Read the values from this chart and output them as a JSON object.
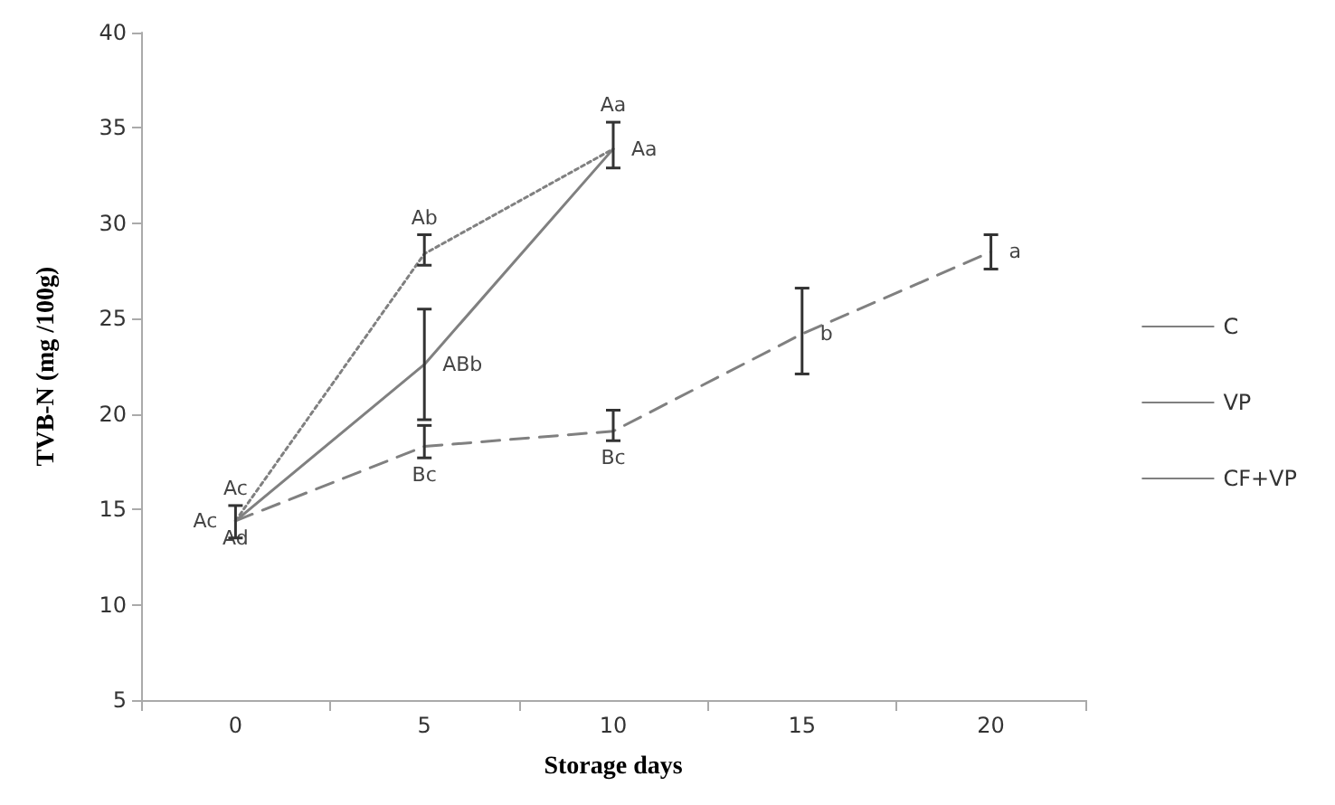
{
  "chart_data": {
    "type": "line",
    "xlabel": "Storage days",
    "ylabel": "TVB-N (mg /100g)",
    "categories": [
      "0",
      "5",
      "10",
      "15",
      "20"
    ],
    "series": [
      {
        "name": "C",
        "color": "#808080",
        "line_style": "solid",
        "values": [
          14.4,
          22.6,
          33.9,
          null,
          null
        ],
        "errors": [
          [
            13.5,
            15.2
          ],
          [
            19.7,
            25.5
          ],
          [
            32.9,
            35.3
          ],
          null,
          null
        ],
        "value_labels": [
          "Ac",
          "ABb",
          "Aa",
          null,
          null
        ]
      },
      {
        "name": "VP",
        "color": "#808080",
        "line_style": "dotted",
        "values": [
          14.4,
          28.4,
          33.9,
          null,
          null
        ],
        "errors": [
          null,
          [
            27.8,
            29.4
          ],
          null,
          null,
          null
        ],
        "value_labels": [
          "Ac",
          "Ab",
          "Aa",
          null,
          null
        ]
      },
      {
        "name": "CF+VP",
        "color": "#808080",
        "line_style": "dashed",
        "values": [
          14.4,
          18.3,
          19.1,
          24.2,
          28.5
        ],
        "errors": [
          null,
          [
            17.7,
            19.4
          ],
          [
            18.6,
            20.2
          ],
          [
            22.1,
            26.6
          ],
          [
            27.6,
            29.4
          ]
        ],
        "value_labels": [
          "Ad",
          "Bc",
          "Bc",
          "b",
          "a"
        ]
      }
    ],
    "ylim": [
      5,
      40
    ],
    "yticks": [
      5,
      10,
      15,
      20,
      25,
      30,
      35,
      40
    ],
    "grid": false,
    "legend": "right",
    "marker": "none"
  }
}
